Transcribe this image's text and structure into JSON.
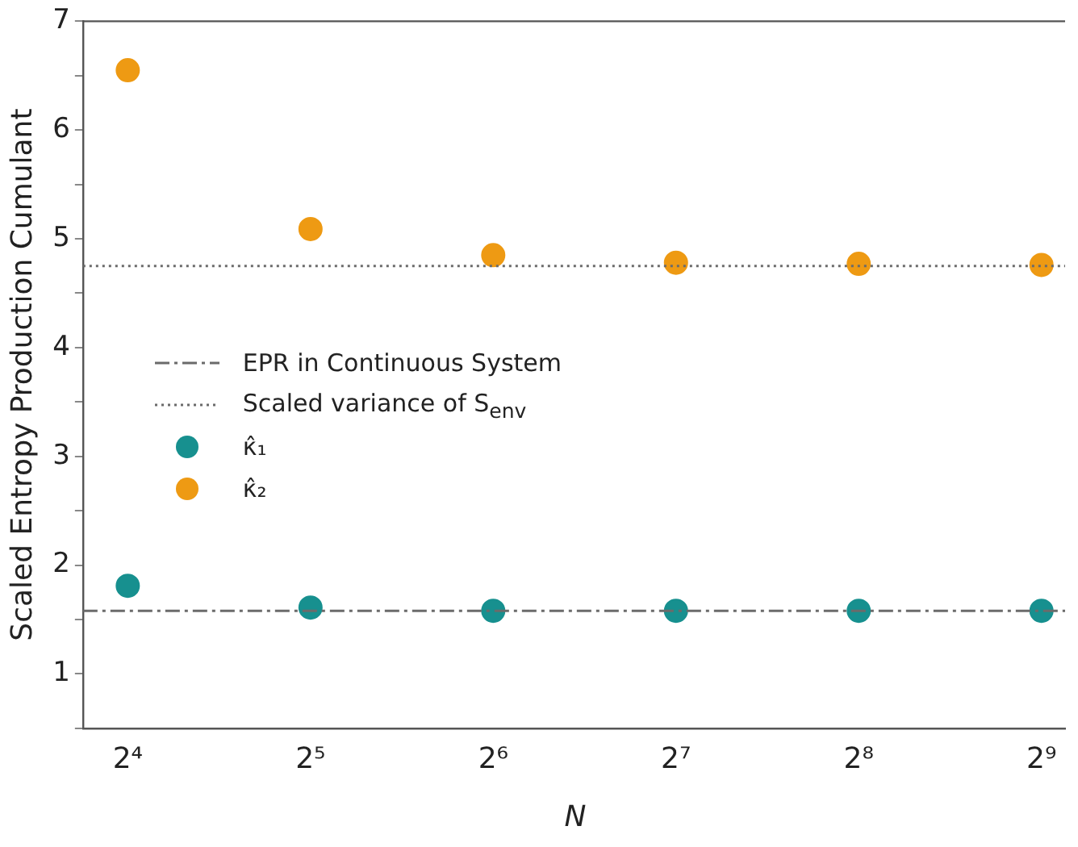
{
  "chart_data": {
    "type": "scatter",
    "xlabel": "N",
    "ylabel": "Scaled Entropy Production Cumulant",
    "x": [
      16,
      32,
      64,
      128,
      256,
      512
    ],
    "series": [
      {
        "name": "κ̂₁",
        "color": "#17908f",
        "values": [
          1.81,
          1.61,
          1.58,
          1.58,
          1.58,
          1.58
        ]
      },
      {
        "name": "κ̂₂",
        "color": "#ee9a13",
        "values": [
          6.55,
          5.09,
          4.85,
          4.78,
          4.77,
          4.76
        ]
      }
    ],
    "ref_lines": [
      {
        "axis": "y",
        "value": 1.58,
        "label": "EPR in Continuous System",
        "color": "#6b6b6b",
        "line_style": "dashdot"
      },
      {
        "axis": "y",
        "value": 4.75,
        "label": "Scaled variance of S$_{env}$",
        "color": "#6b6b6b",
        "line_style": "dotted"
      }
    ],
    "log": "x",
    "xlim": [
      13.5,
      560
    ],
    "xticks": [
      {
        "value": 16,
        "label": "2⁴"
      },
      {
        "value": 32,
        "label": "2⁵"
      },
      {
        "value": 64,
        "label": "2⁶"
      },
      {
        "value": 128,
        "label": "2⁷"
      },
      {
        "value": 256,
        "label": "2⁸"
      },
      {
        "value": 512,
        "label": "2⁹"
      }
    ],
    "ylim": [
      0.5,
      7
    ],
    "yticks": [
      {
        "value": 0.5,
        "label": null
      },
      1,
      {
        "value": 1.5,
        "label": null
      },
      2,
      {
        "value": 2.5,
        "label": null
      },
      3,
      {
        "value": 3.5,
        "label": null
      },
      4,
      {
        "value": 4.5,
        "label": null
      },
      5,
      {
        "value": 5.5,
        "label": null
      },
      6,
      {
        "value": 6.5,
        "label": null
      },
      7
    ],
    "grid": false,
    "legend": "left",
    "marker": "circle"
  }
}
